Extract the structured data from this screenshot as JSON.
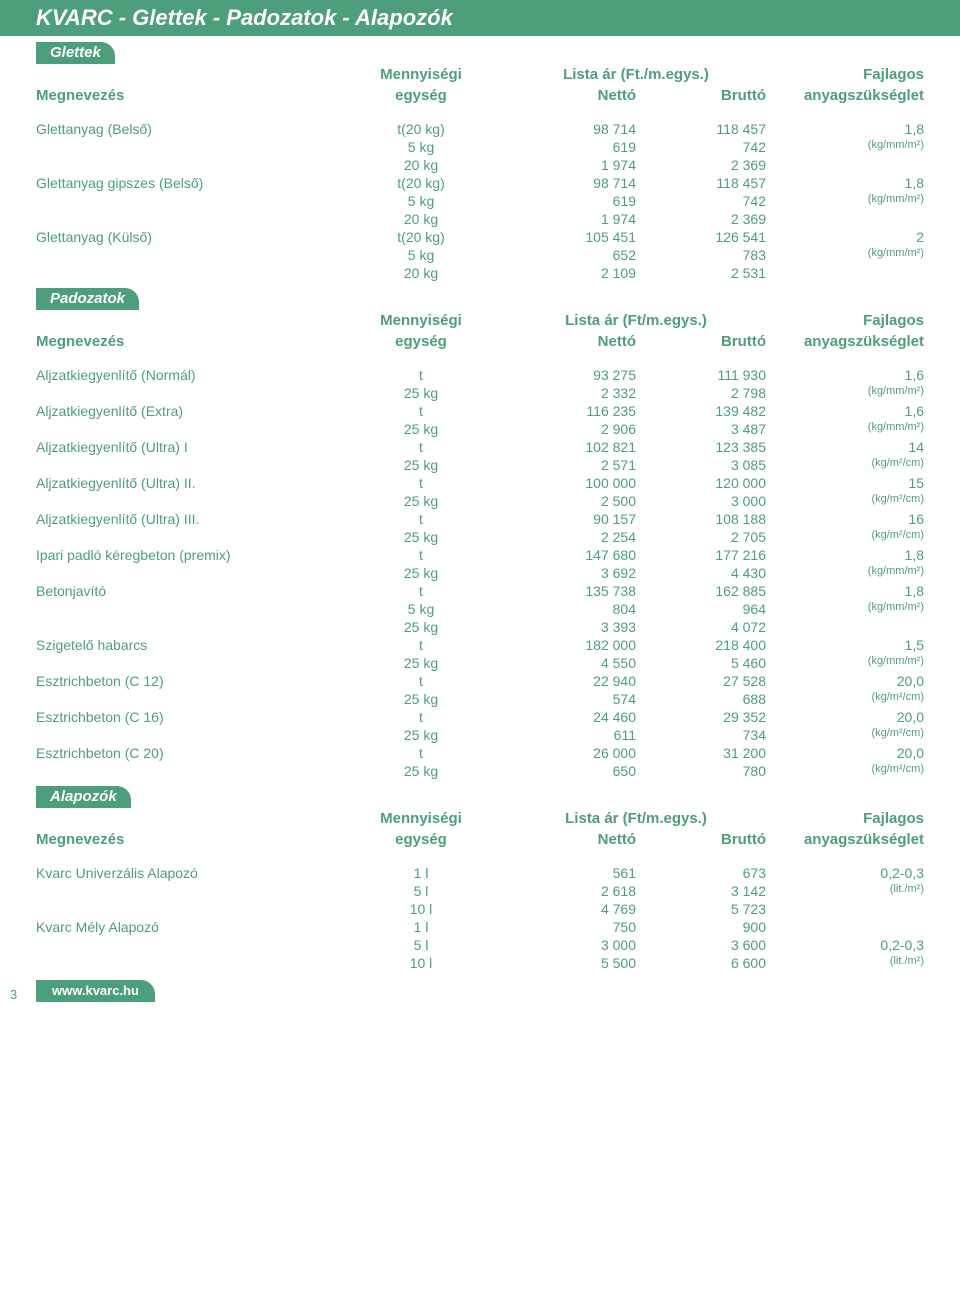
{
  "page_title": "KVARC - Glettek - Padozatok - Alapozók",
  "footer": "www.kvarc.hu",
  "page_number": "3",
  "colors": {
    "green": "#4d9e7b",
    "white": "#ffffff"
  },
  "headers": {
    "megnevezes": "Megnevezés",
    "menny_top": "Mennyiségi",
    "menny_bot": "egység",
    "lista_top": "Lista ár (Ft./m.egys.)",
    "lista_top2": "Lista ár (Ft/m.egys.)",
    "netto": "Nettó",
    "brutto": "Bruttó",
    "fajlagos_top": "Fajlagos",
    "fajlagos_bot": "anyagszükséglet"
  },
  "sections": [
    {
      "tab": "Glettek",
      "lista_key": "lista_top",
      "groups": [
        {
          "name": "Glettanyag (Belső)",
          "fajlagos": "1,8",
          "fajlagos_unit": "(kg/mm/m²)",
          "rows": [
            {
              "unit": "t(20 kg)",
              "netto": "98 714",
              "brutto": "118 457"
            },
            {
              "unit": "5 kg",
              "netto": "619",
              "brutto": "742"
            },
            {
              "unit": "20 kg",
              "netto": "1 974",
              "brutto": "2 369"
            }
          ]
        },
        {
          "name": "Glettanyag gipszes (Belső)",
          "fajlagos": "1,8",
          "fajlagos_unit": "(kg/mm/m²)",
          "rows": [
            {
              "unit": "t(20 kg)",
              "netto": "98 714",
              "brutto": "118 457"
            },
            {
              "unit": "5 kg",
              "netto": "619",
              "brutto": "742"
            },
            {
              "unit": "20 kg",
              "netto": "1 974",
              "brutto": "2 369"
            }
          ]
        },
        {
          "name": "Glettanyag (Külső)",
          "fajlagos": "2",
          "fajlagos_unit": "(kg/mm/m²)",
          "rows": [
            {
              "unit": "t(20 kg)",
              "netto": "105 451",
              "brutto": "126 541"
            },
            {
              "unit": "5 kg",
              "netto": "652",
              "brutto": "783"
            },
            {
              "unit": "20 kg",
              "netto": "2 109",
              "brutto": "2 531"
            }
          ]
        }
      ]
    },
    {
      "tab": "Padozatok",
      "lista_key": "lista_top2",
      "groups": [
        {
          "name": "Aljzatkiegyenlítő (Normál)",
          "fajlagos": "1,6",
          "fajlagos_unit": "(kg/mm/m²)",
          "rows": [
            {
              "unit": "t",
              "netto": "93 275",
              "brutto": "111 930"
            },
            {
              "unit": "25 kg",
              "netto": "2 332",
              "brutto": "2 798"
            }
          ]
        },
        {
          "name": "Aljzatkiegyenlítő (Extra)",
          "fajlagos": "1,6",
          "fajlagos_unit": "(kg/mm/m²)",
          "rows": [
            {
              "unit": "t",
              "netto": "116 235",
              "brutto": "139 482"
            },
            {
              "unit": "25 kg",
              "netto": "2 906",
              "brutto": "3 487"
            }
          ]
        },
        {
          "name": "Aljzatkiegyenlítő (Ultra) I",
          "fajlagos": "14",
          "fajlagos_unit": "(kg/m²/cm)",
          "rows": [
            {
              "unit": "t",
              "netto": "102 821",
              "brutto": "123 385"
            },
            {
              "unit": "25 kg",
              "netto": "2 571",
              "brutto": "3 085"
            }
          ]
        },
        {
          "name": "Aljzatkiegyenlítő (Ultra) II.",
          "fajlagos": "15",
          "fajlagos_unit": "(kg/m²/cm)",
          "rows": [
            {
              "unit": "t",
              "netto": "100 000",
              "brutto": "120 000"
            },
            {
              "unit": "25 kg",
              "netto": "2 500",
              "brutto": "3 000"
            }
          ]
        },
        {
          "name": "Aljzatkiegyenlítő (Ultra) III.",
          "fajlagos": "16",
          "fajlagos_unit": "(kg/m²/cm)",
          "rows": [
            {
              "unit": "t",
              "netto": "90 157",
              "brutto": "108 188"
            },
            {
              "unit": "25 kg",
              "netto": "2 254",
              "brutto": "2 705"
            }
          ]
        },
        {
          "name": "Ipari padló kéregbeton (premix)",
          "fajlagos": "1,8",
          "fajlagos_unit": "(kg/mm/m²)",
          "rows": [
            {
              "unit": "t",
              "netto": "147 680",
              "brutto": "177 216"
            },
            {
              "unit": "25 kg",
              "netto": "3 692",
              "brutto": "4 430"
            }
          ]
        },
        {
          "name": "Betonjavító",
          "fajlagos": "1,8",
          "fajlagos_unit": "(kg/mm/m²)",
          "rows": [
            {
              "unit": "t",
              "netto": "135 738",
              "brutto": "162 885"
            },
            {
              "unit": "5 kg",
              "netto": "804",
              "brutto": "964"
            },
            {
              "unit": "25 kg",
              "netto": "3 393",
              "brutto": "4 072"
            }
          ]
        },
        {
          "name": "Szigetelő habarcs",
          "fajlagos": "1,5",
          "fajlagos_unit": "(kg/mm/m²)",
          "rows": [
            {
              "unit": "t",
              "netto": "182 000",
              "brutto": "218 400"
            },
            {
              "unit": "25 kg",
              "netto": "4 550",
              "brutto": "5 460"
            }
          ]
        },
        {
          "name": "Esztrichbeton (C 12)",
          "fajlagos": "20,0",
          "fajlagos_unit": "(kg/m²/cm)",
          "rows": [
            {
              "unit": "t",
              "netto": "22 940",
              "brutto": "27 528"
            },
            {
              "unit": "25 kg",
              "netto": "574",
              "brutto": "688"
            }
          ]
        },
        {
          "name": "Esztrichbeton (C 16)",
          "fajlagos": "20,0",
          "fajlagos_unit": "(kg/m²/cm)",
          "rows": [
            {
              "unit": "t",
              "netto": "24 460",
              "brutto": "29 352"
            },
            {
              "unit": "25 kg",
              "netto": "611",
              "brutto": "734"
            }
          ]
        },
        {
          "name": "Esztrichbeton (C 20)",
          "fajlagos": "20,0",
          "fajlagos_unit": "(kg/m²/cm)",
          "rows": [
            {
              "unit": "t",
              "netto": "26 000",
              "brutto": "31 200"
            },
            {
              "unit": "25 kg",
              "netto": "650",
              "brutto": "780"
            }
          ]
        }
      ]
    },
    {
      "tab": "Alapozók",
      "lista_key": "lista_top2",
      "groups": [
        {
          "name": "Kvarc Univerzális Alapozó",
          "fajlagos": "0,2-0,3",
          "fajlagos_unit": "(lit./m²)",
          "rows": [
            {
              "unit": "1 l",
              "netto": "561",
              "brutto": "673"
            },
            {
              "unit": "5 l",
              "netto": "2 618",
              "brutto": "3 142"
            },
            {
              "unit": "10 l",
              "netto": "4 769",
              "brutto": "5 723"
            }
          ]
        },
        {
          "name": "Kvarc Mély Alapozó",
          "fajlagos": "0,2-0,3",
          "fajlagos_unit": "(lit./m²)",
          "fajlagos_offset": true,
          "rows": [
            {
              "unit": "1 l",
              "netto": "750",
              "brutto": "900"
            },
            {
              "unit": "5 l",
              "netto": "3 000",
              "brutto": "3 600"
            },
            {
              "unit": "10 l",
              "netto": "5 500",
              "brutto": "6 600"
            }
          ]
        }
      ]
    }
  ]
}
